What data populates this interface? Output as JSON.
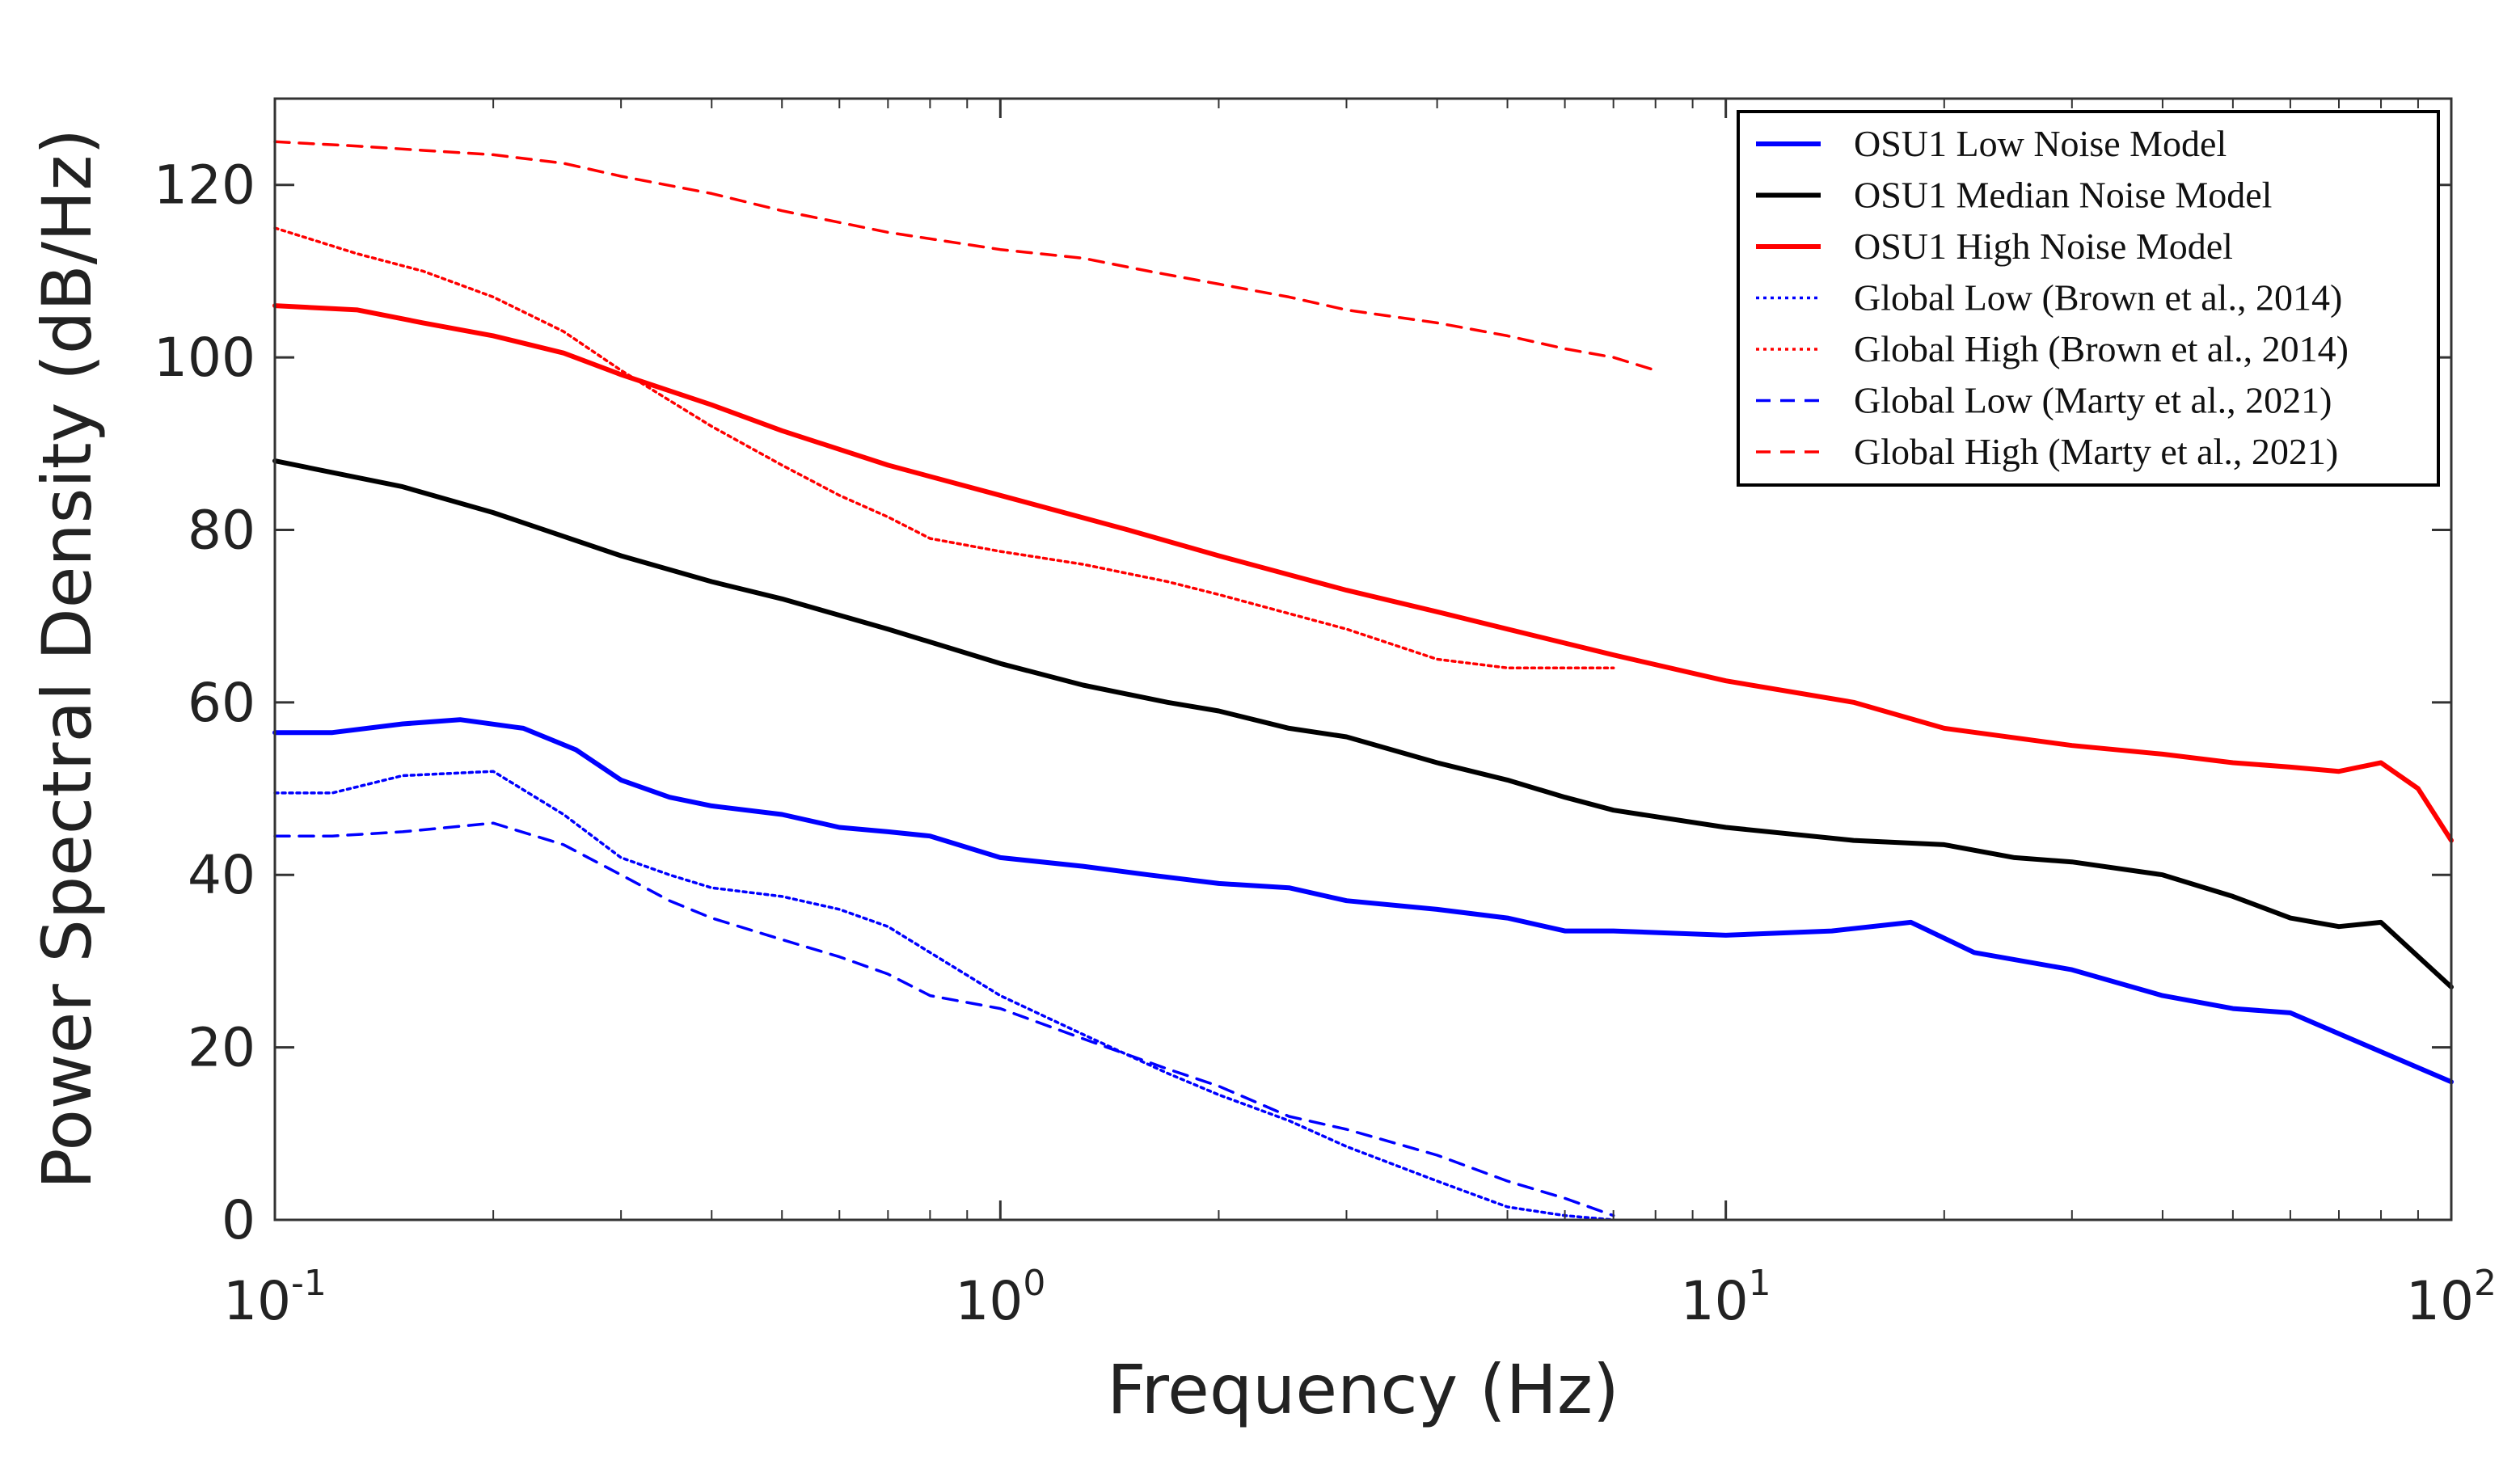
{
  "chart_data": {
    "type": "line",
    "title": "",
    "xlabel": "Frequency (Hz)",
    "ylabel": "Power Spectral Density (dB/Hz)",
    "xscale": "log",
    "xlim": [
      0.1,
      100
    ],
    "ylim": [
      0,
      130
    ],
    "x_ticks": [
      {
        "base": "10",
        "exp": "-1"
      },
      {
        "base": "10",
        "exp": "0"
      },
      {
        "base": "10",
        "exp": "1"
      },
      {
        "base": "10",
        "exp": "2"
      }
    ],
    "y_ticks": [
      "0",
      "20",
      "40",
      "60",
      "80",
      "100",
      "120"
    ],
    "legend_position": "top-right",
    "series": [
      {
        "name": "OSU1 Low Noise Model",
        "color": "#0000ff",
        "style": "solid",
        "x": [
          0.1,
          0.12,
          0.15,
          0.18,
          0.22,
          0.26,
          0.3,
          0.35,
          0.4,
          0.5,
          0.6,
          0.7,
          0.8,
          1.0,
          1.3,
          1.6,
          2.0,
          2.5,
          3.0,
          4.0,
          5.0,
          6.0,
          7.0,
          10.0,
          14.0,
          18.0,
          22.0,
          30.0,
          40.0,
          50.0,
          60.0,
          75.0,
          100.0
        ],
        "y": [
          56.5,
          56.5,
          57.5,
          58,
          57,
          54.5,
          51,
          49,
          48,
          47,
          45.5,
          45,
          44.5,
          42,
          41,
          40,
          39,
          38.5,
          37,
          36,
          35,
          33.5,
          33.5,
          33,
          33.5,
          34.5,
          31,
          29,
          26,
          24.5,
          24,
          20.5,
          16
        ]
      },
      {
        "name": "OSU1 Median Noise Model",
        "color": "#000000",
        "style": "solid",
        "x": [
          0.1,
          0.15,
          0.2,
          0.3,
          0.4,
          0.5,
          0.7,
          1.0,
          1.3,
          1.7,
          2.0,
          2.5,
          3.0,
          4.0,
          5.0,
          6.0,
          7.0,
          10.0,
          15.0,
          20.0,
          25.0,
          30.0,
          40.0,
          50.0,
          60.0,
          70.0,
          80.0,
          100.0
        ],
        "y": [
          88,
          85,
          82,
          77,
          74,
          72,
          68.5,
          64.5,
          62,
          60,
          59,
          57,
          56,
          53,
          51,
          49,
          47.5,
          45.5,
          44,
          43.5,
          42,
          41.5,
          40,
          37.5,
          35,
          34,
          34.5,
          27
        ]
      },
      {
        "name": "OSU1 High Noise Model",
        "color": "#ff0000",
        "style": "solid",
        "x": [
          0.1,
          0.13,
          0.16,
          0.2,
          0.25,
          0.3,
          0.4,
          0.5,
          0.7,
          1.0,
          1.5,
          2.0,
          3.0,
          4.0,
          5.0,
          7.0,
          10.0,
          15.0,
          20.0,
          30.0,
          40.0,
          50.0,
          60.0,
          70.0,
          80.0,
          90.0,
          100.0
        ],
        "y": [
          106,
          105.5,
          104,
          102.5,
          100.5,
          98,
          94.5,
          91.5,
          87.5,
          84,
          80,
          77,
          73,
          70.5,
          68.5,
          65.5,
          62.5,
          60,
          57,
          55,
          54,
          53,
          52.5,
          52,
          53,
          50,
          44
        ]
      },
      {
        "name": "Global Low (Brown et al., 2014)",
        "color": "#0000ff",
        "style": "dotted",
        "x": [
          0.1,
          0.12,
          0.15,
          0.2,
          0.25,
          0.3,
          0.35,
          0.4,
          0.5,
          0.6,
          0.7,
          0.8,
          1.0,
          1.3,
          1.7,
          2.0,
          2.5,
          3.0,
          4.0,
          5.0,
          6.0,
          7.0
        ],
        "y": [
          49.5,
          49.5,
          51.5,
          52,
          47,
          42,
          40,
          38.5,
          37.5,
          36,
          34,
          31,
          26,
          21.5,
          17,
          14.5,
          11.5,
          8.5,
          4.5,
          1.5,
          0.5,
          0
        ]
      },
      {
        "name": "Global High (Brown et al., 2014)",
        "color": "#ff0000",
        "style": "dotted",
        "x": [
          0.1,
          0.13,
          0.16,
          0.2,
          0.25,
          0.3,
          0.35,
          0.4,
          0.5,
          0.6,
          0.7,
          0.8,
          1.0,
          1.3,
          1.7,
          2.0,
          3.0,
          4.0,
          5.0,
          6.0,
          7.0
        ],
        "y": [
          115,
          112,
          110,
          107,
          103,
          98.5,
          95,
          92,
          87.5,
          84,
          81.5,
          79,
          77.5,
          76,
          74,
          72.5,
          68.5,
          65,
          64,
          64,
          64
        ]
      },
      {
        "name": "Global Low (Marty et al., 2021)",
        "color": "#0000ff",
        "style": "dashed",
        "x": [
          0.1,
          0.12,
          0.15,
          0.2,
          0.25,
          0.3,
          0.35,
          0.4,
          0.5,
          0.6,
          0.7,
          0.8,
          1.0,
          1.3,
          1.7,
          2.0,
          2.5,
          3.0,
          4.0,
          5.0,
          6.0,
          7.0
        ],
        "y": [
          44.5,
          44.5,
          45,
          46,
          43.5,
          40,
          37,
          35,
          32.5,
          30.5,
          28.5,
          26,
          24.5,
          21,
          17.5,
          15.5,
          12,
          10.5,
          7.5,
          4.5,
          2.5,
          0.5
        ]
      },
      {
        "name": "Global High (Marty et al., 2021)",
        "color": "#ff0000",
        "style": "dashed",
        "x": [
          0.1,
          0.13,
          0.16,
          0.2,
          0.25,
          0.3,
          0.4,
          0.5,
          0.7,
          1.0,
          1.3,
          1.6,
          2.0,
          2.5,
          3.0,
          4.0,
          5.0,
          6.0,
          7.0,
          8.0
        ],
        "y": [
          125,
          124.5,
          124,
          123.5,
          122.5,
          121,
          119,
          117,
          114.5,
          112.5,
          111.5,
          110,
          108.5,
          107,
          105.5,
          104,
          102.5,
          101,
          100,
          98.5
        ]
      }
    ]
  }
}
